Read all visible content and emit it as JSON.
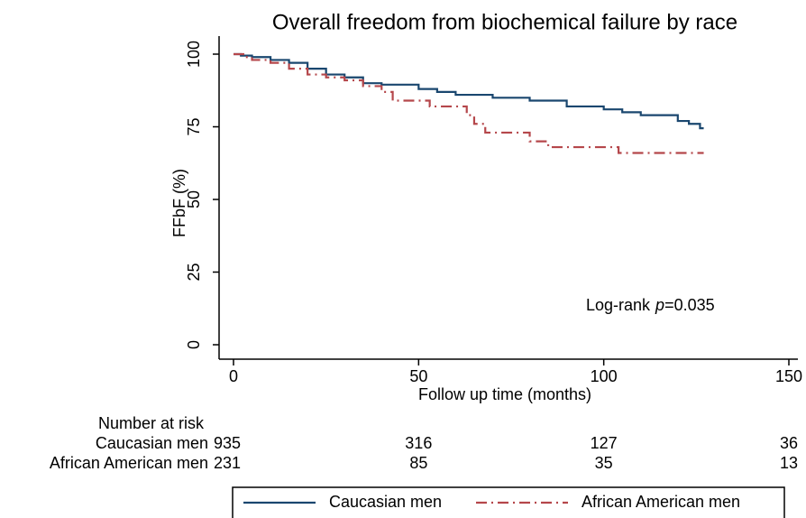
{
  "chart_data": {
    "type": "step",
    "title": "Overall freedom from biochemical failure by race",
    "x_label": "Follow up  time (months)",
    "y_label": "FFbF (%)",
    "xlim": [
      0,
      150
    ],
    "xticks": [
      0,
      50,
      100,
      150
    ],
    "ylim": [
      0,
      100
    ],
    "yticks": [
      0,
      25,
      50,
      75,
      100
    ],
    "series": [
      {
        "name": "Caucasian men",
        "color": "#1a476f",
        "dash": "solid",
        "x": [
          0,
          2,
          5,
          10,
          15,
          20,
          25,
          30,
          35,
          40,
          50,
          55,
          60,
          70,
          80,
          90,
          100,
          105,
          110,
          120,
          123,
          126,
          127
        ],
        "values": [
          100,
          99.5,
          99,
          98,
          97,
          95,
          93,
          92,
          90,
          89.5,
          88,
          87,
          86,
          85,
          84,
          82,
          81,
          80,
          79,
          77,
          76,
          74.5,
          74.5
        ]
      },
      {
        "name": "African American men",
        "color": "#b5474b",
        "dash": "dashdot",
        "x": [
          0,
          3,
          5,
          10,
          15,
          20,
          25,
          30,
          35,
          40,
          43,
          50,
          53,
          60,
          63,
          65,
          68,
          75,
          80,
          85,
          95,
          104,
          127
        ],
        "values": [
          100,
          99,
          98,
          97,
          95,
          93,
          92,
          91,
          89,
          87,
          84,
          84,
          82,
          82,
          79,
          76,
          73,
          73,
          70,
          68,
          68,
          66,
          66
        ]
      }
    ],
    "annotation": {
      "text": "Log-rank",
      "italic": "p",
      "rest": "=0.035"
    },
    "risk_table": {
      "title": "Number at risk",
      "rows": [
        {
          "name": "Caucasian men",
          "counts": [
            935,
            316,
            127,
            36
          ]
        },
        {
          "name": "African American men",
          "counts": [
            231,
            85,
            35,
            13
          ]
        }
      ]
    }
  }
}
